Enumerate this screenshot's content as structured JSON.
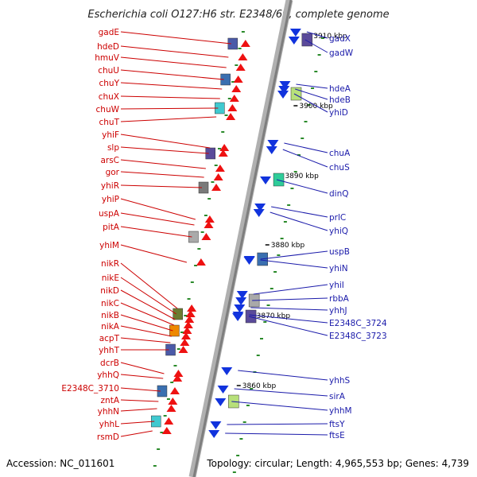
{
  "title": "Escherichia coli O127:H6 str. E2348/69, complete genome",
  "footer": {
    "accession": "Accession: NC_011601",
    "summary": "Topology: circular; Length: 4,965,553 bp; Genes: 4,739"
  },
  "chart_data": {
    "type": "genome_map",
    "ticks_kbp": [
      "3910 kbp",
      "3900 kbp",
      "3890 kbp",
      "3880 kbp",
      "3870 kbp",
      "3860 kbp"
    ],
    "forward_genes": [
      "gadE",
      "hdeD",
      "hmuV",
      "chuU",
      "chuY",
      "chuX",
      "chuW",
      "chuT",
      "yhiF",
      "slp",
      "arsC",
      "gor",
      "yhiR",
      "yhiP",
      "uspA",
      "pitA",
      "yhiM",
      "nikR",
      "nikE",
      "nikD",
      "nikC",
      "nikB",
      "nikA",
      "acpT",
      "yhhT",
      "dcrB",
      "yhhQ",
      "E2348C_3710",
      "zntA",
      "yhhN",
      "yhhL",
      "rsmD"
    ],
    "reverse_genes": [
      "gadX",
      "gadW",
      "hdeA",
      "hdeB",
      "yhiD",
      "chuA",
      "chuS",
      "dinQ",
      "prlC",
      "yhiQ",
      "uspB",
      "yhiN",
      "yhiI",
      "rbbA",
      "yhhJ",
      "E2348C_3724",
      "E2348C_3723",
      "yhhS",
      "sirA",
      "yhhM",
      "ftsY",
      "ftsE"
    ],
    "colors": {
      "forward_label": "#cc0000",
      "reverse_label": "#1a1aaa",
      "forward_arrow": "#ee1111",
      "reverse_arrow": "#1133dd",
      "backbone": "#9a9a9a",
      "tick": "#2a8a2a"
    }
  }
}
